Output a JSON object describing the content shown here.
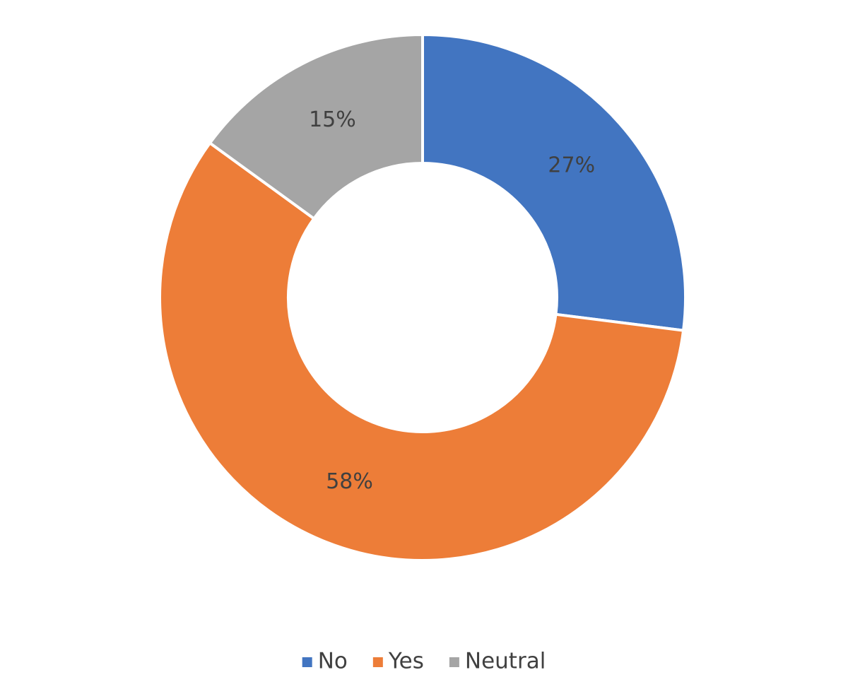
{
  "chart_data": {
    "type": "doughnut",
    "categories": [
      "No",
      "Yes",
      "Neutral"
    ],
    "values": [
      27,
      58,
      15
    ],
    "value_labels": [
      "27%",
      "58%",
      "15%"
    ],
    "colors": [
      "#4275c1",
      "#ed7d38",
      "#a5a5a5"
    ],
    "legend": "bottom"
  }
}
